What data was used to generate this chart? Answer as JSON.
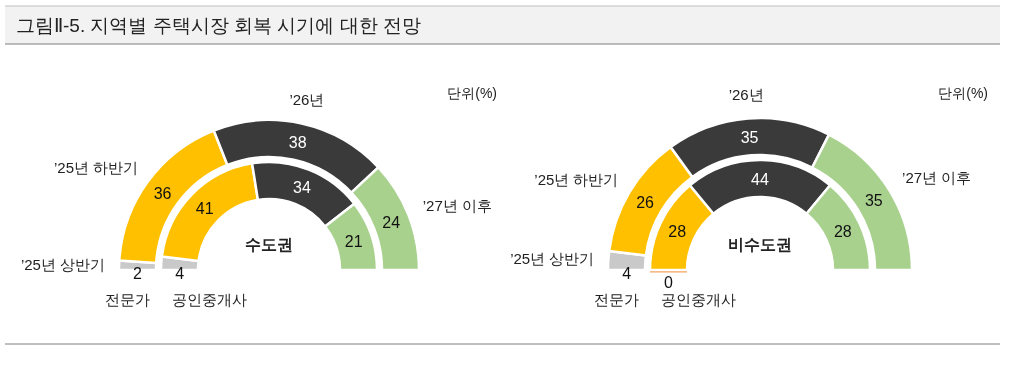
{
  "chart_data": [
    {
      "type": "donut",
      "title": "수도권",
      "categories": [
        "’25년 상반기",
        "’25년 하반기",
        "’26년",
        "’27년 이후"
      ],
      "series": [
        {
          "name": "전문가",
          "colors": [
            "#c9c9c9",
            "#ffc000",
            "#3a3a3a",
            "#a9d18e"
          ],
          "values": [
            2,
            36,
            38,
            24
          ]
        },
        {
          "name": "공인중개사",
          "colors": [
            "#c9c9c9",
            "#ffc000",
            "#3a3a3a",
            "#a9d18e"
          ],
          "values": [
            4,
            41,
            34,
            21
          ]
        }
      ],
      "data_labels": true,
      "annotations": [
        "그림Ⅱ-5. 지역별 주택시장 회복 시기에 대한 전망",
        "단위(%)"
      ]
    },
    {
      "type": "donut",
      "title": "비수도권",
      "categories": [
        "’25년 상반기",
        "’25년 하반기",
        "’26년",
        "’27년 이후"
      ],
      "series": [
        {
          "name": "전문가",
          "colors": [
            "#c9c9c9",
            "#ffc000",
            "#3a3a3a",
            "#a9d18e"
          ],
          "values": [
            4,
            26,
            35,
            35
          ]
        },
        {
          "name": "공인중개사",
          "colors": [
            "#f4a460",
            "#ffc000",
            "#3a3a3a",
            "#a9d18e"
          ],
          "values": [
            0,
            28,
            44,
            28
          ],
          "value_labels": [
            "0",
            "28",
            "44",
            "28"
          ]
        }
      ],
      "data_labels": true,
      "annotations": [
        "단위(%)"
      ]
    }
  ]
}
